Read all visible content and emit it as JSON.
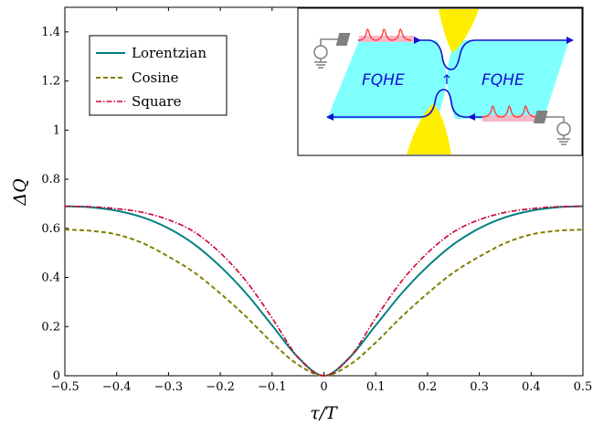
{
  "chart_data": {
    "type": "line",
    "xlabel": "τ/T",
    "ylabel": "ΔQ",
    "xlim": [
      -0.5,
      0.5
    ],
    "ylim": [
      0,
      1.5
    ],
    "xticks": [
      -0.5,
      -0.4,
      -0.3,
      -0.2,
      -0.1,
      0,
      0.1,
      0.2,
      0.3,
      0.4,
      0.5
    ],
    "xtick_labels": [
      "−0.5",
      "−0.4",
      "−0.3",
      "−0.2",
      "−0.1",
      "0",
      "0.1",
      "0.2",
      "0.3",
      "0.4",
      "0.5"
    ],
    "yticks": [
      0,
      0.2,
      0.4,
      0.6,
      0.8,
      1,
      1.2,
      1.4
    ],
    "ytick_labels": [
      "0",
      "0.2",
      "0.4",
      "0.6",
      "0.8",
      "1",
      "1.2",
      "1.4"
    ],
    "legend_position": "top-left",
    "x": [
      -0.5,
      -0.45,
      -0.4,
      -0.35,
      -0.3,
      -0.25,
      -0.2,
      -0.15,
      -0.1,
      -0.05,
      0,
      0.05,
      0.1,
      0.15,
      0.2,
      0.25,
      0.3,
      0.35,
      0.4,
      0.45,
      0.5
    ],
    "series": [
      {
        "name": "Lorentzian",
        "color": "#008080",
        "dash": "solid",
        "values": [
          0.69,
          0.686,
          0.672,
          0.645,
          0.6,
          0.535,
          0.445,
          0.335,
          0.205,
          0.075,
          0.0,
          0.075,
          0.205,
          0.335,
          0.445,
          0.535,
          0.6,
          0.645,
          0.672,
          0.686,
          0.69
        ]
      },
      {
        "name": "Cosine",
        "color": "#808000",
        "dash": "dashed",
        "values": [
          0.595,
          0.59,
          0.575,
          0.54,
          0.485,
          0.42,
          0.335,
          0.24,
          0.135,
          0.045,
          0.0,
          0.045,
          0.135,
          0.24,
          0.335,
          0.42,
          0.485,
          0.54,
          0.575,
          0.59,
          0.595
        ]
      },
      {
        "name": "Square",
        "color": "#cc0033",
        "dash": "dashdot",
        "values": [
          0.69,
          0.688,
          0.68,
          0.665,
          0.635,
          0.585,
          0.5,
          0.385,
          0.235,
          0.075,
          0.0,
          0.075,
          0.235,
          0.385,
          0.5,
          0.585,
          0.635,
          0.665,
          0.68,
          0.688,
          0.69
        ]
      }
    ]
  },
  "inset": {
    "left_region_label": "FQHE",
    "right_region_label": "FQHE",
    "colors": {
      "sample": "#80ffff",
      "gate": "#ffee00",
      "edge": "#1010d0",
      "pulse": "#ff3030",
      "pulse_fill": "#f5b8c8",
      "contact": "#808080"
    }
  }
}
